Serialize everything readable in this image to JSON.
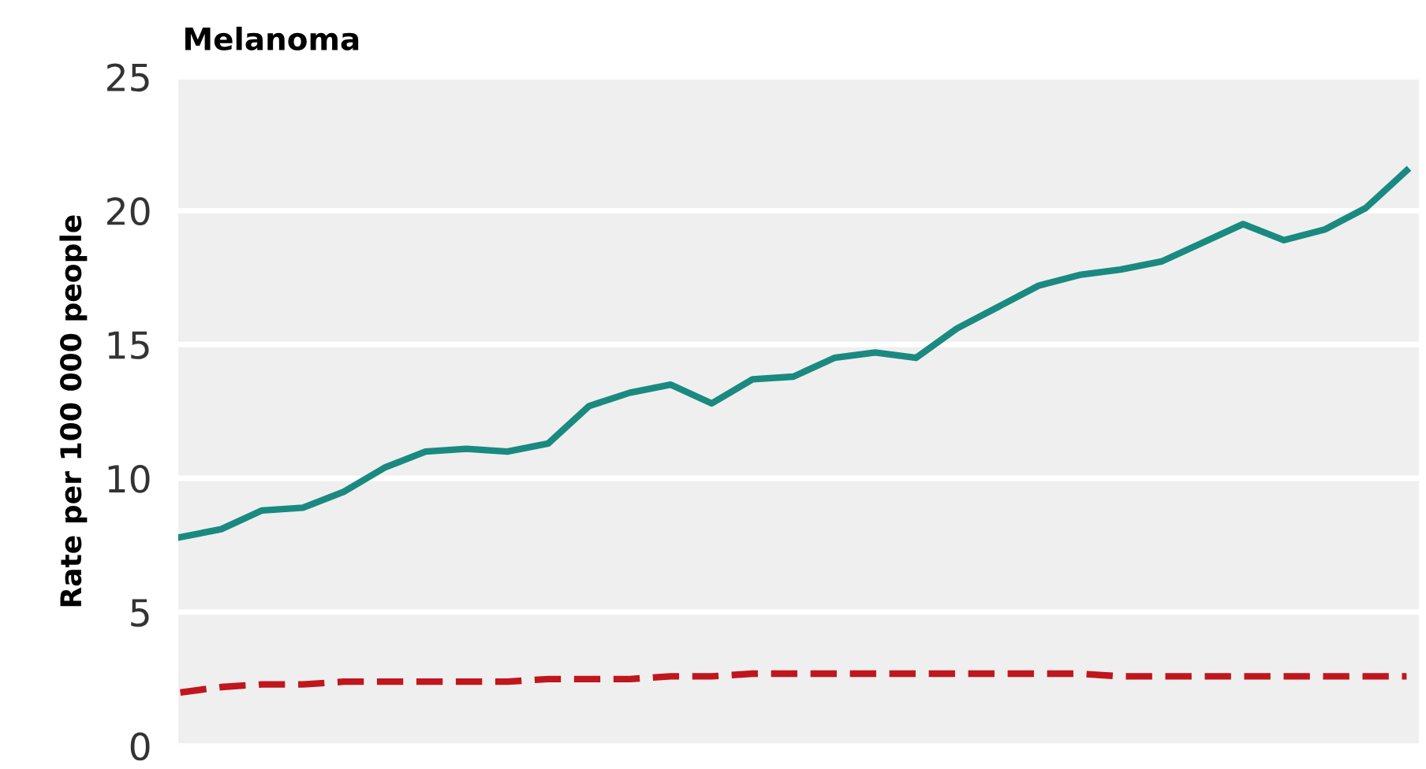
{
  "chart_data": {
    "type": "line",
    "title": "Melanoma",
    "ylabel": "Rate per 100 000 people",
    "categories": [
      null,
      null,
      null,
      null,
      null,
      null,
      null,
      null,
      null,
      null,
      null,
      null,
      null,
      null,
      null,
      null,
      null,
      null,
      null,
      null,
      null,
      null,
      null,
      null,
      null,
      null,
      null,
      null,
      null,
      null,
      null
    ],
    "series": [
      {
        "color": "#1a8a80",
        "line_style": "solid",
        "values": [
          7.8,
          8.1,
          8.8,
          8.9,
          9.5,
          10.4,
          11.0,
          11.1,
          11.0,
          11.3,
          12.7,
          13.2,
          13.5,
          12.8,
          13.7,
          13.8,
          14.5,
          14.7,
          14.5,
          15.6,
          16.4,
          17.2,
          17.6,
          17.8,
          18.1,
          18.8,
          19.5,
          18.9,
          19.3,
          20.1,
          21.5
        ]
      },
      {
        "color": "#c0161e",
        "line_style": "dashed",
        "values": [
          2.0,
          2.2,
          2.3,
          2.3,
          2.4,
          2.4,
          2.4,
          2.4,
          2.4,
          2.5,
          2.5,
          2.5,
          2.6,
          2.6,
          2.7,
          2.7,
          2.7,
          2.7,
          2.7,
          2.7,
          2.7,
          2.7,
          2.7,
          2.6,
          2.6,
          2.6,
          2.6,
          2.6,
          2.6,
          2.6,
          2.6
        ]
      }
    ],
    "ylim": [
      0,
      25
    ],
    "yticks": [
      0,
      5,
      10,
      15,
      20,
      25
    ],
    "grid": "y",
    "legend": false,
    "tick_labels": "y"
  }
}
